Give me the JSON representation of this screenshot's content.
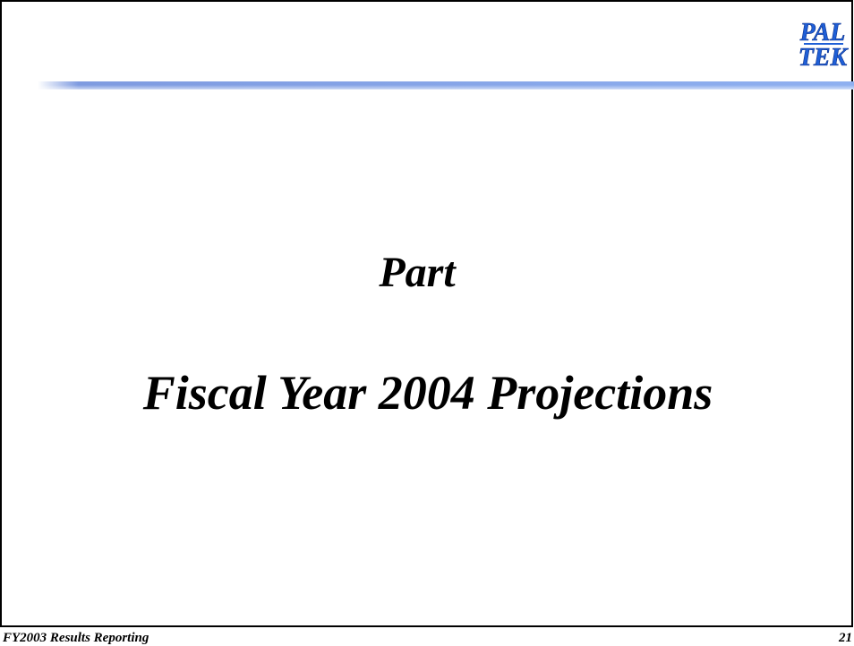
{
  "logo": {
    "line1": "PAL",
    "line2": "TEK"
  },
  "body": {
    "line1": "Part",
    "line2": "Fiscal Year 2004 Projections"
  },
  "footer": {
    "left": "FY2003 Results Reporting",
    "page": "21"
  }
}
